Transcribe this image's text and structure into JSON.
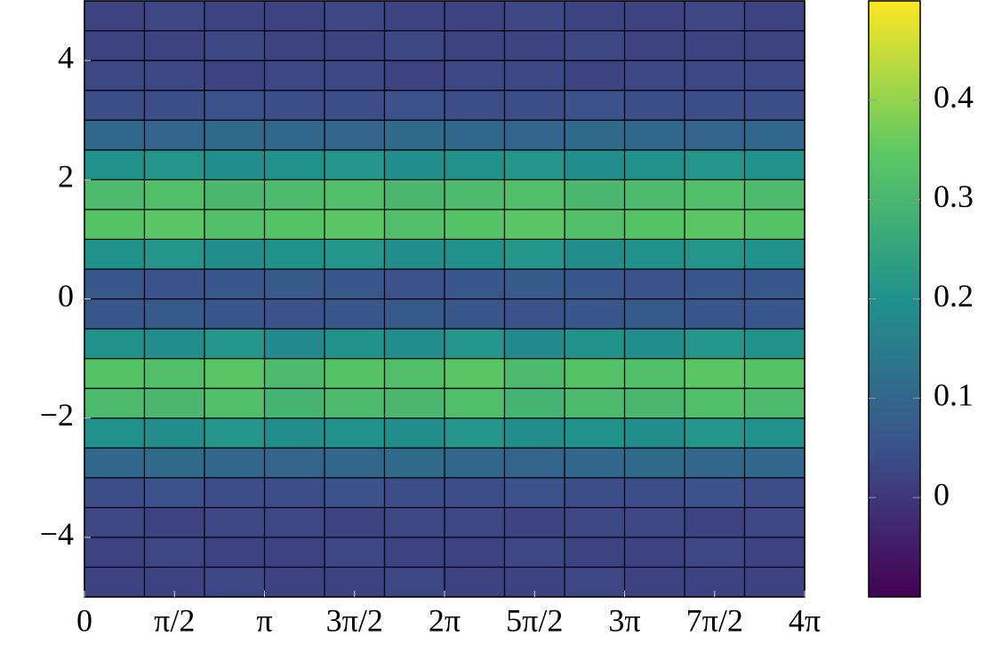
{
  "chart_data": {
    "type": "heatmap",
    "colormap": "viridis",
    "xbins": [
      0,
      1.047,
      2.094,
      3.142,
      4.189,
      5.236,
      6.283,
      7.33,
      8.378,
      9.425,
      10.472,
      11.519,
      12.566
    ],
    "ybins": [
      -5,
      -4.5,
      -4,
      -3.5,
      -3,
      -2.5,
      -2,
      -1.5,
      -1,
      -0.5,
      0,
      0.5,
      1,
      1.5,
      2,
      2.5,
      3,
      3.5,
      4,
      4.5,
      5
    ],
    "z": [
      [
        0.02,
        0.02,
        0.03,
        0.02,
        0.02,
        0.03,
        0.02,
        0.02,
        0.03,
        0.02,
        0.02,
        0.02
      ],
      [
        0.02,
        0.03,
        0.02,
        0.02,
        0.03,
        0.02,
        0.02,
        0.03,
        0.02,
        0.02,
        0.03,
        0.02
      ],
      [
        0.03,
        0.02,
        0.03,
        0.03,
        0.02,
        0.03,
        0.03,
        0.02,
        0.03,
        0.03,
        0.02,
        0.03
      ],
      [
        0.04,
        0.05,
        0.04,
        0.04,
        0.05,
        0.04,
        0.04,
        0.05,
        0.04,
        0.04,
        0.05,
        0.04
      ],
      [
        0.1,
        0.11,
        0.1,
        0.09,
        0.1,
        0.11,
        0.1,
        0.09,
        0.1,
        0.11,
        0.1,
        0.1
      ],
      [
        0.2,
        0.19,
        0.21,
        0.19,
        0.2,
        0.19,
        0.21,
        0.19,
        0.2,
        0.19,
        0.21,
        0.2
      ],
      [
        0.31,
        0.3,
        0.32,
        0.29,
        0.31,
        0.3,
        0.32,
        0.29,
        0.31,
        0.3,
        0.32,
        0.31
      ],
      [
        0.33,
        0.32,
        0.34,
        0.31,
        0.33,
        0.32,
        0.34,
        0.31,
        0.33,
        0.32,
        0.34,
        0.33
      ],
      [
        0.2,
        0.19,
        0.21,
        0.18,
        0.2,
        0.19,
        0.21,
        0.18,
        0.2,
        0.19,
        0.21,
        0.2
      ],
      [
        0.06,
        0.07,
        0.06,
        0.05,
        0.06,
        0.07,
        0.06,
        0.05,
        0.06,
        0.07,
        0.06,
        0.06
      ],
      [
        0.06,
        0.05,
        0.06,
        0.07,
        0.06,
        0.05,
        0.06,
        0.07,
        0.06,
        0.05,
        0.06,
        0.06
      ],
      [
        0.2,
        0.21,
        0.19,
        0.2,
        0.21,
        0.19,
        0.2,
        0.21,
        0.19,
        0.2,
        0.21,
        0.2
      ],
      [
        0.33,
        0.34,
        0.32,
        0.33,
        0.34,
        0.32,
        0.33,
        0.34,
        0.32,
        0.33,
        0.34,
        0.33
      ],
      [
        0.31,
        0.32,
        0.3,
        0.31,
        0.32,
        0.3,
        0.31,
        0.32,
        0.3,
        0.31,
        0.32,
        0.31
      ],
      [
        0.2,
        0.21,
        0.19,
        0.2,
        0.21,
        0.19,
        0.2,
        0.21,
        0.19,
        0.2,
        0.21,
        0.2
      ],
      [
        0.1,
        0.09,
        0.11,
        0.1,
        0.09,
        0.11,
        0.1,
        0.09,
        0.11,
        0.1,
        0.09,
        0.1
      ],
      [
        0.04,
        0.04,
        0.05,
        0.04,
        0.04,
        0.05,
        0.04,
        0.04,
        0.05,
        0.04,
        0.04,
        0.04
      ],
      [
        0.03,
        0.03,
        0.02,
        0.03,
        0.03,
        0.02,
        0.03,
        0.03,
        0.02,
        0.03,
        0.03,
        0.03
      ],
      [
        0.02,
        0.02,
        0.03,
        0.02,
        0.02,
        0.03,
        0.02,
        0.02,
        0.03,
        0.02,
        0.02,
        0.02
      ],
      [
        0.02,
        0.03,
        0.02,
        0.02,
        0.03,
        0.02,
        0.02,
        0.03,
        0.02,
        0.02,
        0.03,
        0.02
      ]
    ],
    "xlim": [
      0,
      12.566
    ],
    "ylim": [
      -5,
      5
    ],
    "clim": [
      -0.1,
      0.5
    ],
    "xticks": [
      0,
      {
        "value": 1.5708,
        "label": "π/2"
      },
      {
        "value": 3.1416,
        "label": "π"
      },
      {
        "value": 4.7124,
        "label": "3π/2"
      },
      {
        "value": 6.2832,
        "label": "2π"
      },
      {
        "value": 7.854,
        "label": "5π/2"
      },
      {
        "value": 9.4248,
        "label": "3π"
      },
      {
        "value": 10.9956,
        "label": "7π/2"
      },
      {
        "value": 12.5664,
        "label": "4π"
      }
    ],
    "yticks": [
      {
        "value": -4,
        "label": "−4"
      },
      {
        "value": -2,
        "label": "−2"
      },
      0,
      2,
      4
    ],
    "cticks": [
      0,
      0.1,
      0.2,
      0.3,
      0.4
    ]
  }
}
